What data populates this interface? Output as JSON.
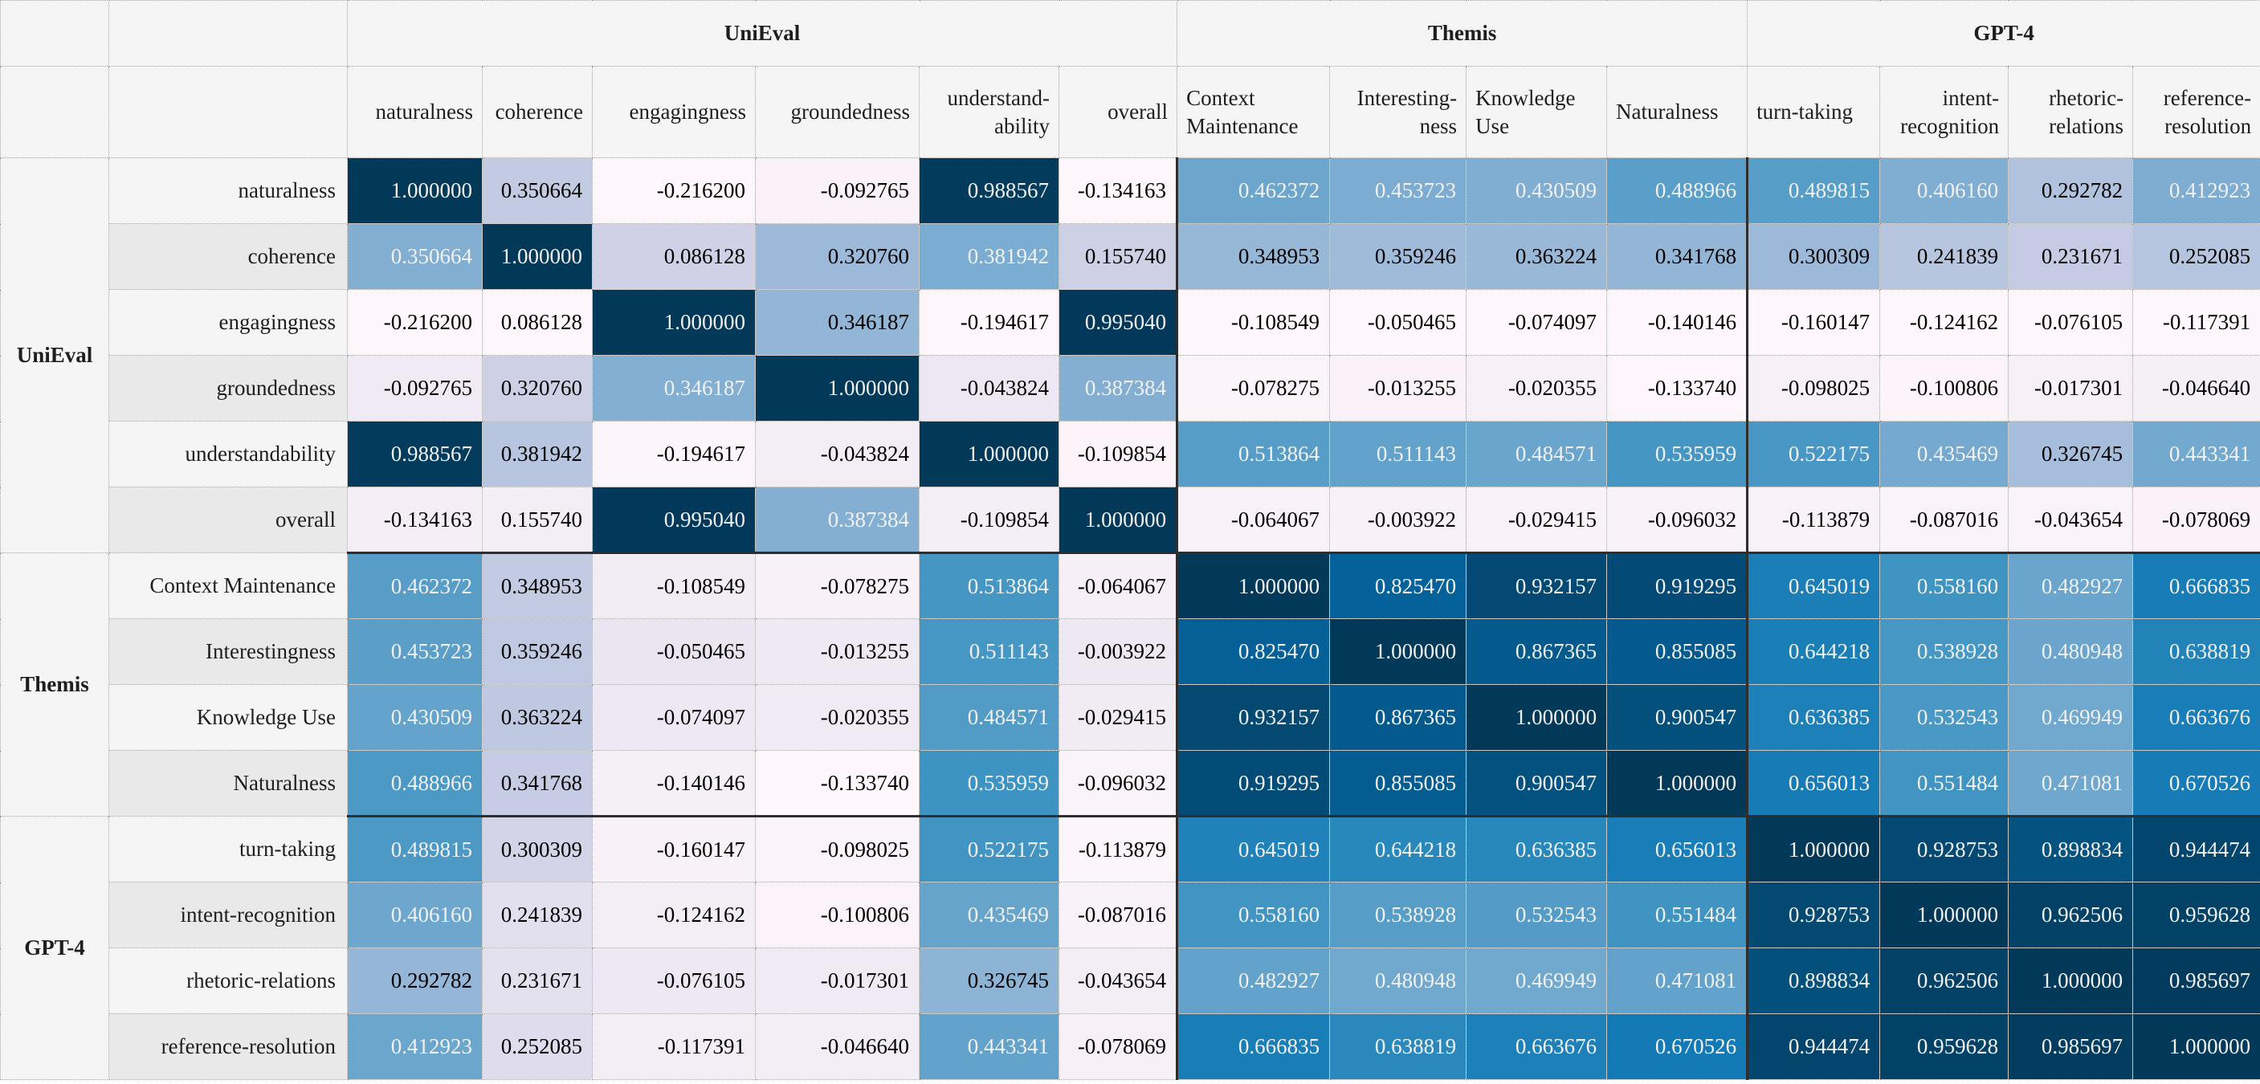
{
  "chart_data": {
    "type": "heatmap",
    "title": "",
    "col_groups": [
      {
        "label": "UniEval",
        "span": 6
      },
      {
        "label": "Themis",
        "span": 4
      },
      {
        "label": "GPT-4",
        "span": 4
      }
    ],
    "row_groups": [
      {
        "label": "UniEval",
        "span": 6
      },
      {
        "label": "Themis",
        "span": 4
      },
      {
        "label": "GPT-4",
        "span": 4
      }
    ],
    "columns": [
      {
        "label": "naturalness",
        "align": "right"
      },
      {
        "label": "coherence",
        "align": "right"
      },
      {
        "label": "engagingness",
        "align": "right"
      },
      {
        "label": "groundedness",
        "align": "right"
      },
      {
        "label": "understand-ability",
        "align": "right"
      },
      {
        "label": "overall",
        "align": "right"
      },
      {
        "label": "Context Maintenance",
        "align": "left"
      },
      {
        "label": "Interesting-ness",
        "align": "right"
      },
      {
        "label": "Knowledge Use",
        "align": "left"
      },
      {
        "label": "Naturalness",
        "align": "left"
      },
      {
        "label": "turn-taking",
        "align": "left"
      },
      {
        "label": "intent-recognition",
        "align": "right"
      },
      {
        "label": "rhetoric-relations",
        "align": "right"
      },
      {
        "label": "reference-resolution",
        "align": "right"
      }
    ],
    "rows": [
      "naturalness",
      "coherence",
      "engagingness",
      "groundedness",
      "understandability",
      "overall",
      "Context Maintenance",
      "Interestingness",
      "Knowledge Use",
      "Naturalness",
      "turn-taking",
      "intent-recognition",
      "rhetoric-relations",
      "reference-resolution"
    ],
    "matrix": [
      [
        1.0,
        0.350664,
        -0.2162,
        -0.092765,
        0.988567,
        -0.134163,
        0.462372,
        0.453723,
        0.430509,
        0.488966,
        0.489815,
        0.40616,
        0.292782,
        0.412923
      ],
      [
        0.350664,
        1.0,
        0.086128,
        0.32076,
        0.381942,
        0.15574,
        0.348953,
        0.359246,
        0.363224,
        0.341768,
        0.300309,
        0.241839,
        0.231671,
        0.252085
      ],
      [
        -0.2162,
        0.086128,
        1.0,
        0.346187,
        -0.194617,
        0.99504,
        -0.108549,
        -0.050465,
        -0.074097,
        -0.140146,
        -0.160147,
        -0.124162,
        -0.076105,
        -0.117391
      ],
      [
        -0.092765,
        0.32076,
        0.346187,
        1.0,
        -0.043824,
        0.387384,
        -0.078275,
        -0.013255,
        -0.020355,
        -0.13374,
        -0.098025,
        -0.100806,
        -0.017301,
        -0.04664
      ],
      [
        0.988567,
        0.381942,
        -0.194617,
        -0.043824,
        1.0,
        -0.109854,
        0.513864,
        0.511143,
        0.484571,
        0.535959,
        0.522175,
        0.435469,
        0.326745,
        0.443341
      ],
      [
        -0.134163,
        0.15574,
        0.99504,
        0.387384,
        -0.109854,
        1.0,
        -0.064067,
        -0.003922,
        -0.029415,
        -0.096032,
        -0.113879,
        -0.087016,
        -0.043654,
        -0.078069
      ],
      [
        0.462372,
        0.348953,
        -0.108549,
        -0.078275,
        0.513864,
        -0.064067,
        1.0,
        0.82547,
        0.932157,
        0.919295,
        0.645019,
        0.55816,
        0.482927,
        0.666835
      ],
      [
        0.453723,
        0.359246,
        -0.050465,
        -0.013255,
        0.511143,
        -0.003922,
        0.82547,
        1.0,
        0.867365,
        0.855085,
        0.644218,
        0.538928,
        0.480948,
        0.638819
      ],
      [
        0.430509,
        0.363224,
        -0.074097,
        -0.020355,
        0.484571,
        -0.029415,
        0.932157,
        0.867365,
        1.0,
        0.900547,
        0.636385,
        0.532543,
        0.469949,
        0.663676
      ],
      [
        0.488966,
        0.341768,
        -0.140146,
        -0.13374,
        0.535959,
        -0.096032,
        0.919295,
        0.855085,
        0.900547,
        1.0,
        0.656013,
        0.551484,
        0.471081,
        0.670526
      ],
      [
        0.489815,
        0.300309,
        -0.160147,
        -0.098025,
        0.522175,
        -0.113879,
        0.645019,
        0.644218,
        0.636385,
        0.656013,
        1.0,
        0.928753,
        0.898834,
        0.944474
      ],
      [
        0.40616,
        0.241839,
        -0.124162,
        -0.100806,
        0.435469,
        -0.087016,
        0.55816,
        0.538928,
        0.532543,
        0.551484,
        0.928753,
        1.0,
        0.962506,
        0.959628
      ],
      [
        0.292782,
        0.231671,
        -0.076105,
        -0.017301,
        0.326745,
        -0.043654,
        0.482927,
        0.480948,
        0.469949,
        0.471081,
        0.898834,
        0.962506,
        1.0,
        0.985697
      ],
      [
        0.412923,
        0.252085,
        -0.117391,
        -0.04664,
        0.443341,
        -0.078069,
        0.666835,
        0.638819,
        0.663676,
        0.670526,
        0.944474,
        0.959628,
        0.985697,
        1.0
      ]
    ],
    "value_decimals": 6,
    "normalization": "per-column min-max",
    "colormap": {
      "name": "PuBu",
      "stops": [
        "#fff7fb",
        "#ece7f2",
        "#d0d1e6",
        "#a6bddb",
        "#74a9cf",
        "#3690c0",
        "#0570b0",
        "#045a8d",
        "#023858"
      ]
    },
    "text_colors": {
      "dark": "#000000",
      "light": "#f1f1f1",
      "luminance_threshold": 0.408
    },
    "style_colors": {
      "header_bg": "#f5f5f5",
      "row_stripe_bg": "#e9e9e9",
      "dotted_border": "#9a9a9a",
      "group_separator": "#2e2e2e"
    },
    "legend_position": "none",
    "grid": "dotted"
  }
}
